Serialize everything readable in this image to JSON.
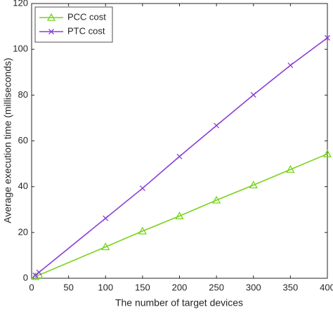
{
  "chart_data": {
    "type": "line",
    "x_label": "The number of target devices",
    "y_label": "Average execution time (milliseconds)",
    "x": [
      5,
      10,
      100,
      150,
      200,
      250,
      300,
      350,
      400
    ],
    "series": [
      {
        "name": "PCC cost",
        "color": "#77d41a",
        "marker": "triangle",
        "values": [
          0.7,
          1.4,
          13.7,
          20.6,
          27.2,
          34.1,
          40.7,
          47.5,
          54.3
        ]
      },
      {
        "name": "PTC cost",
        "color": "#8a3fd6",
        "marker": "x",
        "values": [
          1.3,
          2.6,
          26.2,
          39.3,
          53.2,
          66.7,
          80.1,
          93.0,
          105.0
        ]
      }
    ],
    "xlim": [
      0,
      400
    ],
    "xticks": [
      0,
      50,
      100,
      150,
      200,
      250,
      300,
      350,
      400
    ],
    "ylim": [
      0,
      120
    ],
    "yticks": [
      0,
      20,
      40,
      60,
      80,
      100,
      120
    ],
    "grid": false,
    "legend": "upper left"
  }
}
